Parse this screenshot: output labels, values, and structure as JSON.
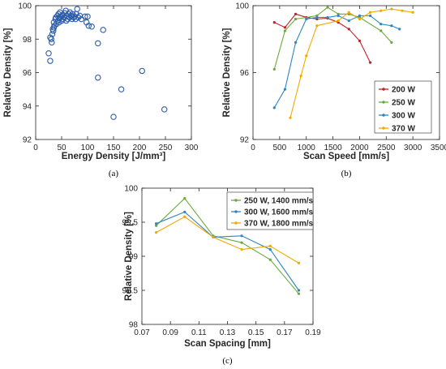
{
  "chart_data": [
    {
      "type": "scatter",
      "caption": "(a)",
      "xlabel": "Energy Density [J/mm³]",
      "ylabel": "Relative Density [%]",
      "xlim": [
        0,
        300
      ],
      "ylim": [
        92,
        100
      ],
      "xticks": [
        "0",
        "50",
        "100",
        "150",
        "200",
        "250",
        "300"
      ],
      "yticks": [
        "92",
        "94",
        "96",
        "98",
        "100"
      ],
      "grid": false,
      "marker": "open-circle",
      "series_color": "#2e5da8",
      "points": [
        [
          25,
          97.15
        ],
        [
          28,
          96.7
        ],
        [
          28,
          98.1
        ],
        [
          30,
          98.0
        ],
        [
          31,
          97.8
        ],
        [
          32,
          98.3
        ],
        [
          33,
          98.6
        ],
        [
          34,
          98.5
        ],
        [
          35,
          98.7
        ],
        [
          35,
          99.0
        ],
        [
          36,
          98.8
        ],
        [
          38,
          99.2
        ],
        [
          39,
          99.3
        ],
        [
          40,
          98.9
        ],
        [
          42,
          99.4
        ],
        [
          43,
          99.1
        ],
        [
          44,
          99.5
        ],
        [
          45,
          99.0
        ],
        [
          46,
          99.25
        ],
        [
          47,
          99.6
        ],
        [
          48,
          99.35
        ],
        [
          50,
          99.1
        ],
        [
          51,
          99.4
        ],
        [
          52,
          99.45
        ],
        [
          53,
          99.2
        ],
        [
          55,
          99.3
        ],
        [
          56,
          99.55
        ],
        [
          58,
          99.7
        ],
        [
          59,
          99.1
        ],
        [
          60,
          99.4
        ],
        [
          62,
          99.2
        ],
        [
          63,
          99.5
        ],
        [
          65,
          99.3
        ],
        [
          66,
          99.6
        ],
        [
          68,
          99.4
        ],
        [
          70,
          99.2
        ],
        [
          71,
          99.5
        ],
        [
          73,
          99.3
        ],
        [
          75,
          99.35
        ],
        [
          77,
          99.2
        ],
        [
          78,
          99.5
        ],
        [
          80,
          99.8
        ],
        [
          82,
          99.3
        ],
        [
          85,
          99.4
        ],
        [
          88,
          99.2
        ],
        [
          95,
          99.35
        ],
        [
          98,
          99.0
        ],
        [
          100,
          99.35
        ],
        [
          102,
          98.8
        ],
        [
          108,
          98.75
        ],
        [
          120,
          97.75
        ],
        [
          120,
          95.7
        ],
        [
          130,
          98.55
        ],
        [
          150,
          93.35
        ],
        [
          165,
          95.0
        ],
        [
          205,
          96.1
        ],
        [
          248,
          93.8
        ]
      ]
    },
    {
      "type": "line",
      "caption": "(b)",
      "xlabel": "Scan Speed [mm/s]",
      "ylabel": "Relative Density [%]",
      "xlim": [
        0,
        3500
      ],
      "ylim": [
        92,
        100
      ],
      "xticks": [
        "0",
        "500",
        "1000",
        "1500",
        "2000",
        "2500",
        "3000",
        "3500"
      ],
      "yticks": [
        "92",
        "96",
        "100"
      ],
      "grid": false,
      "legend": "inside-right",
      "series": [
        {
          "name": "200 W",
          "color": "#c0202b",
          "x": [
            400,
            600,
            800,
            1000,
            1200,
            1400,
            1600,
            1800,
            2000,
            2200
          ],
          "y": [
            99.0,
            98.7,
            99.5,
            99.3,
            99.2,
            99.25,
            99.0,
            98.6,
            97.9,
            96.6
          ]
        },
        {
          "name": "250 W",
          "color": "#6aaa3a",
          "x": [
            400,
            600,
            800,
            1200,
            1400,
            1600,
            1800,
            2000,
            2400,
            2600
          ],
          "y": [
            96.2,
            98.5,
            99.2,
            99.4,
            99.9,
            99.5,
            99.5,
            99.3,
            98.5,
            97.8
          ]
        },
        {
          "name": "300 W",
          "color": "#2e86c1",
          "x": [
            400,
            600,
            800,
            1000,
            1200,
            1400,
            1600,
            1800,
            2000,
            2200,
            2400,
            2600,
            2750
          ],
          "y": [
            93.9,
            95.0,
            97.8,
            99.2,
            99.3,
            99.3,
            99.4,
            99.1,
            99.4,
            99.4,
            98.9,
            98.8,
            98.6
          ]
        },
        {
          "name": "370 W",
          "color": "#f2a900",
          "x": [
            700,
            900,
            1000,
            1200,
            1600,
            1800,
            2000,
            2200,
            2400,
            2600,
            2800,
            3000
          ],
          "y": [
            93.3,
            95.8,
            97.0,
            98.8,
            99.1,
            99.6,
            99.2,
            99.6,
            99.7,
            99.8,
            99.7,
            99.6
          ]
        }
      ]
    },
    {
      "type": "line",
      "caption": "(c)",
      "xlabel": "Scan Spacing [mm]",
      "ylabel": "Relative Density [%]",
      "xlim": [
        0.07,
        0.19
      ],
      "ylim": [
        98,
        100
      ],
      "xticks": [
        "0.07",
        "0.09",
        "0.11",
        "0.13",
        "0.15",
        "0.17",
        "0.19"
      ],
      "yticks": [
        "98",
        "98.5",
        "99",
        "99.5",
        "100"
      ],
      "grid": false,
      "legend": "top-right",
      "series": [
        {
          "name": "250 W, 1400 mm/s",
          "color": "#6aaa3a",
          "x": [
            0.08,
            0.1,
            0.12,
            0.14,
            0.16,
            0.18
          ],
          "y": [
            99.45,
            99.85,
            99.3,
            99.2,
            98.95,
            98.45
          ]
        },
        {
          "name": "300 W, 1600 mm/s",
          "color": "#2e86c1",
          "x": [
            0.08,
            0.1,
            0.12,
            0.14,
            0.16,
            0.18
          ],
          "y": [
            99.48,
            99.65,
            99.28,
            99.3,
            99.1,
            98.5
          ]
        },
        {
          "name": "370 W, 1800 mm/s",
          "color": "#f2a900",
          "x": [
            0.08,
            0.1,
            0.12,
            0.14,
            0.16,
            0.18
          ],
          "y": [
            99.35,
            99.58,
            99.28,
            99.1,
            99.15,
            98.9
          ]
        }
      ]
    }
  ]
}
